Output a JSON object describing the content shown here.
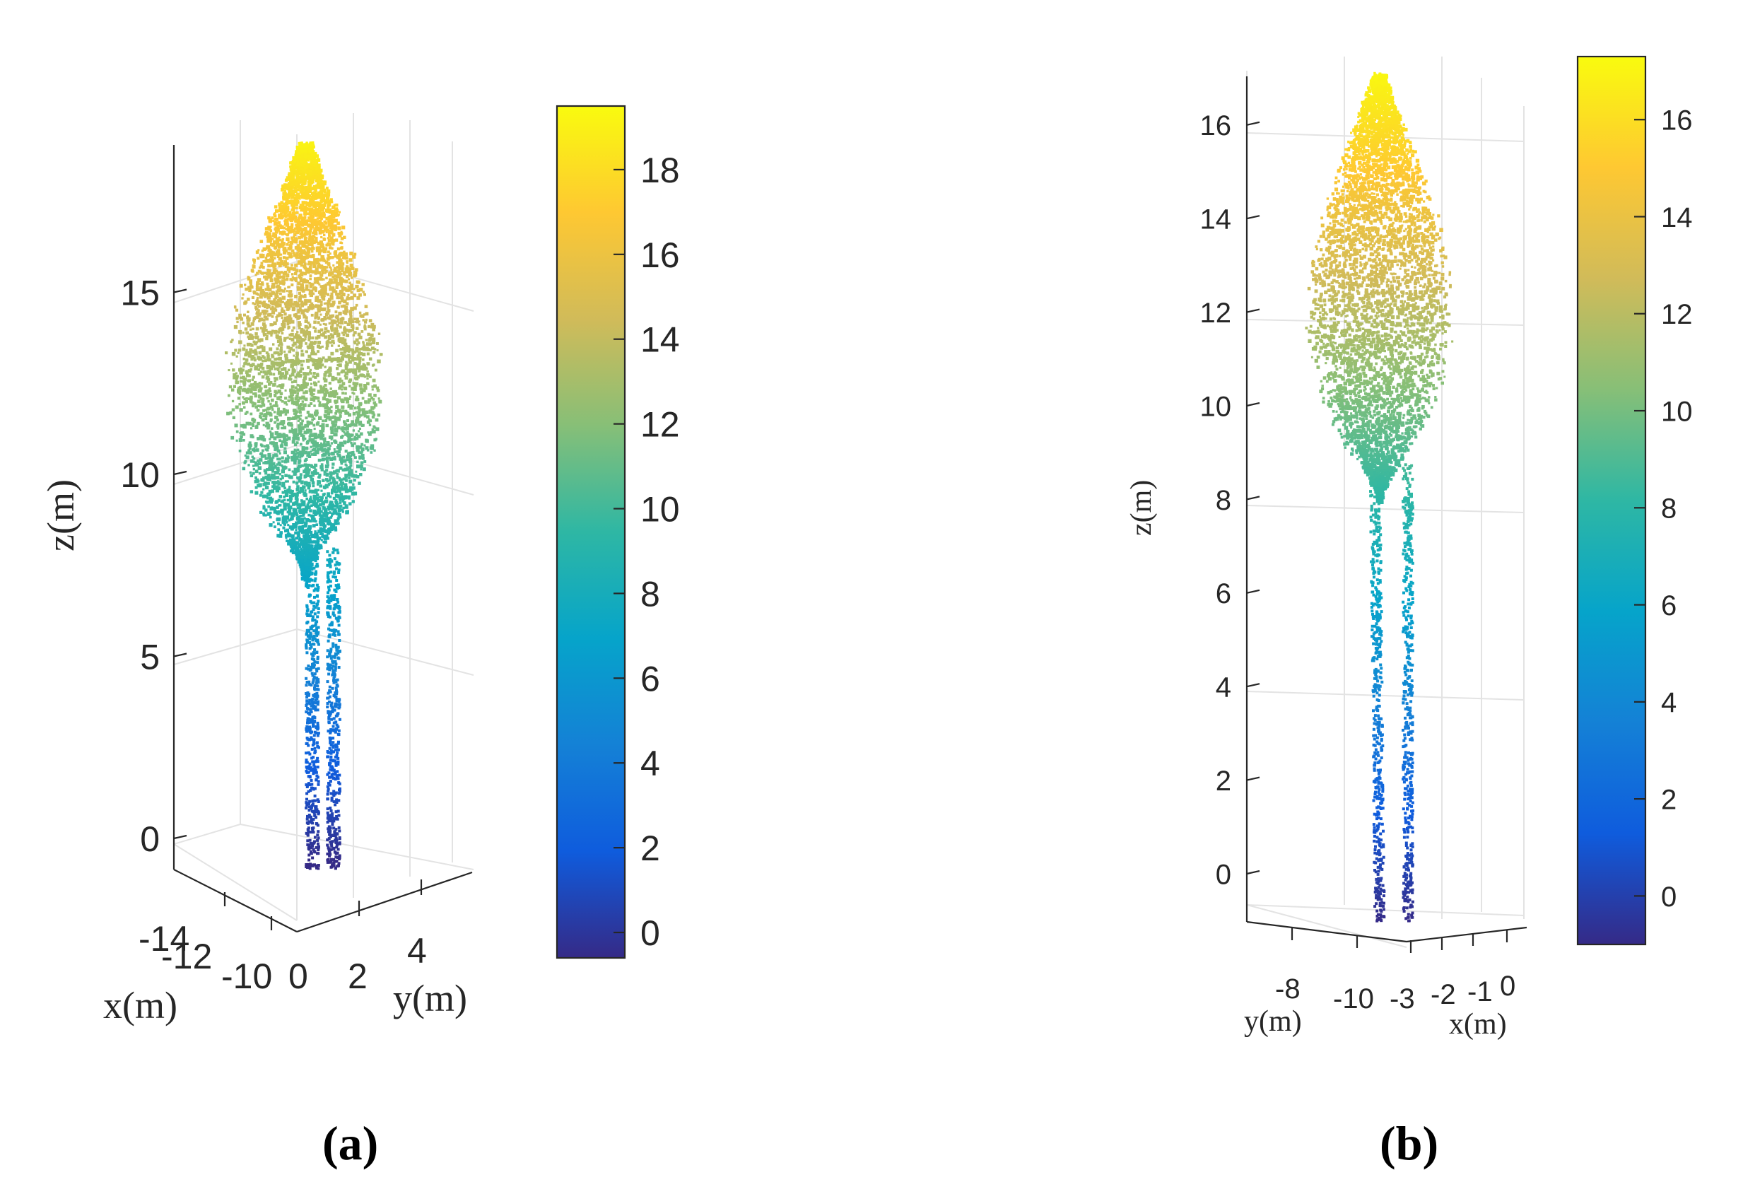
{
  "chart_data": [
    {
      "type": "scatter",
      "subtype": "3d-point-cloud",
      "panel_label": "(a)",
      "xlabel": "x(m)",
      "ylabel": "y(m)",
      "zlabel": "z(m)",
      "x_ticks": [
        "-14",
        "-12",
        "-10"
      ],
      "y_ticks": [
        "0",
        "2",
        "4"
      ],
      "z_ticks": [
        {
          "value": 0,
          "label": "0"
        },
        {
          "value": 5,
          "label": "5"
        },
        {
          "value": 10,
          "label": "10"
        },
        {
          "value": 15,
          "label": "15"
        }
      ],
      "zlim": [
        -0.8,
        19.1
      ],
      "crown_base_z": 7.2,
      "stems": 2,
      "colorbar": {
        "colormap": "parula",
        "range": [
          -0.6,
          19.5
        ],
        "ticks": [
          0,
          2,
          4,
          6,
          8,
          10,
          12,
          14,
          16,
          18
        ]
      }
    },
    {
      "type": "scatter",
      "subtype": "3d-point-cloud",
      "panel_label": "(b)",
      "xlabel": "x(m)",
      "ylabel": "y(m)",
      "zlabel": "z(m)",
      "x_ticks": [
        "-3",
        "-2",
        "-1",
        "0"
      ],
      "y_ticks": [
        "-8",
        "-10"
      ],
      "z_ticks": [
        {
          "value": 0,
          "label": "0"
        },
        {
          "value": 2,
          "label": "2"
        },
        {
          "value": 4,
          "label": "4"
        },
        {
          "value": 6,
          "label": "6"
        },
        {
          "value": 8,
          "label": "8"
        },
        {
          "value": 10,
          "label": "10"
        },
        {
          "value": 12,
          "label": "12"
        },
        {
          "value": 14,
          "label": "14"
        },
        {
          "value": 16,
          "label": "16"
        }
      ],
      "zlim": [
        -1.0,
        17.1
      ],
      "crown_base_z": 8.0,
      "stems": 2,
      "colorbar": {
        "colormap": "parula",
        "range": [
          -1.0,
          17.3
        ],
        "ticks": [
          0,
          2,
          4,
          6,
          8,
          10,
          12,
          14,
          16
        ]
      }
    }
  ],
  "colormap_stops": [
    "#352a87",
    "#0f5cdd",
    "#1481d6",
    "#06a4ca",
    "#2eb7a4",
    "#87bf77",
    "#d1bb59",
    "#fec832",
    "#f9fb0e"
  ]
}
